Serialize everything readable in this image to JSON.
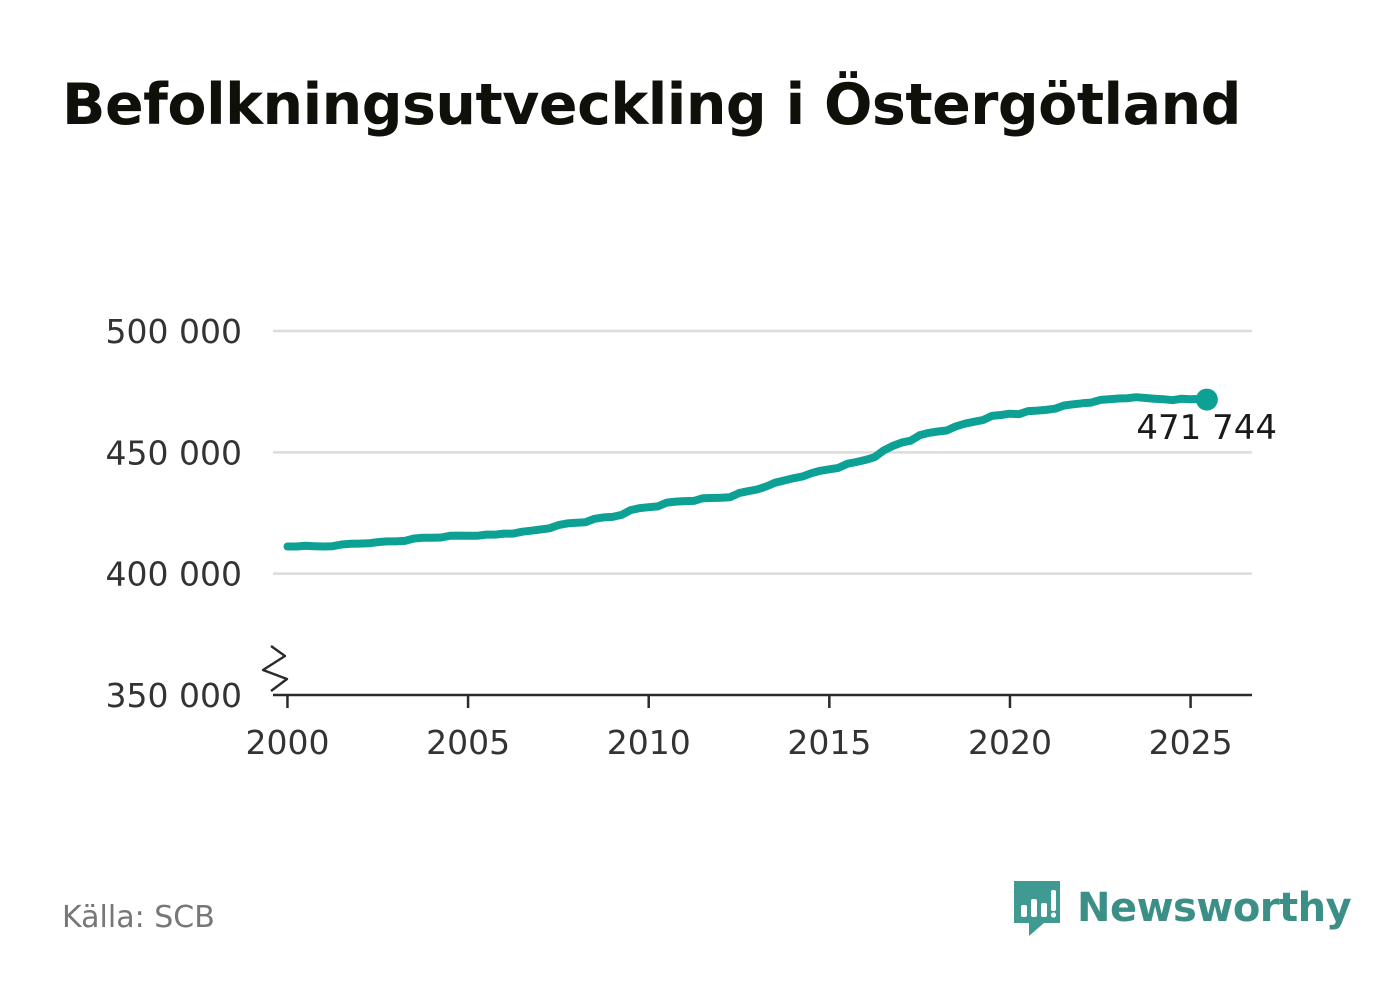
{
  "chart_data": {
    "type": "line",
    "title": "Befolkningsutveckling i Östergötland",
    "xlabel": "",
    "ylabel": "",
    "xlim": [
      1999.6,
      2026.7
    ],
    "ylim": [
      350000,
      500000
    ],
    "y_axis_break": true,
    "grid": true,
    "color": "#0da195",
    "x_ticks": [
      {
        "value": 2000,
        "label": "2000"
      },
      {
        "value": 2005,
        "label": "2005"
      },
      {
        "value": 2010,
        "label": "2010"
      },
      {
        "value": 2015,
        "label": "2015"
      },
      {
        "value": 2020,
        "label": "2020"
      },
      {
        "value": 2025,
        "label": "2025"
      }
    ],
    "y_ticks": [
      {
        "value": 350000,
        "label": "350 000"
      },
      {
        "value": 400000,
        "label": "400 000"
      },
      {
        "value": 450000,
        "label": "450 000"
      },
      {
        "value": 500000,
        "label": "500 000"
      }
    ],
    "series": [
      {
        "x": [
          2000.0,
          2000.25,
          2000.5,
          2000.75,
          2001.0,
          2001.25,
          2001.5,
          2001.75,
          2002.0,
          2002.25,
          2002.5,
          2002.75,
          2003.0,
          2003.25,
          2003.5,
          2003.75,
          2004.0,
          2004.25,
          2004.5,
          2004.75,
          2005.0,
          2005.25,
          2005.5,
          2005.75,
          2006.0,
          2006.25,
          2006.5,
          2006.75,
          2007.0,
          2007.25,
          2007.5,
          2007.75,
          2008.0,
          2008.25,
          2008.5,
          2008.75,
          2009.0,
          2009.25,
          2009.5,
          2009.75,
          2010.0,
          2010.25,
          2010.5,
          2010.75,
          2011.0,
          2011.25,
          2011.5,
          2011.75,
          2012.0,
          2012.25,
          2012.5,
          2012.75,
          2013.0,
          2013.25,
          2013.5,
          2013.75,
          2014.0,
          2014.25,
          2014.5,
          2014.75,
          2015.0,
          2015.25,
          2015.5,
          2015.75,
          2016.0,
          2016.25,
          2016.5,
          2016.75,
          2017.0,
          2017.25,
          2017.5,
          2017.75,
          2018.0,
          2018.25,
          2018.5,
          2018.75,
          2019.0,
          2019.25,
          2019.5,
          2019.75,
          2020.0,
          2020.25,
          2020.5,
          2020.75,
          2021.0,
          2021.25,
          2021.5,
          2021.75,
          2022.0,
          2022.25,
          2022.5,
          2022.75,
          2023.0,
          2023.25,
          2023.5,
          2023.75,
          2024.0,
          2024.25,
          2024.5,
          2024.75,
          2025.0,
          2025.25,
          2025.45
        ],
        "values": [
          411200,
          411200,
          411500,
          411300,
          411200,
          411300,
          412000,
          412300,
          412400,
          412500,
          413000,
          413300,
          413300,
          413500,
          414500,
          414800,
          414800,
          414900,
          415600,
          415700,
          415600,
          415600,
          416100,
          416100,
          416500,
          416500,
          417300,
          417700,
          418200,
          418700,
          420000,
          420700,
          421000,
          421200,
          422600,
          423200,
          423400,
          424200,
          426200,
          427000,
          427400,
          427700,
          429300,
          429700,
          429900,
          430000,
          431100,
          431200,
          431300,
          431500,
          433200,
          434000,
          434700,
          435900,
          437500,
          438400,
          439300,
          440000,
          441400,
          442400,
          443000,
          443600,
          445300,
          446000,
          446900,
          448000,
          450700,
          452600,
          454000,
          454800,
          457000,
          458000,
          458600,
          459000,
          460700,
          461800,
          462600,
          463300,
          465000,
          465400,
          465900,
          465700,
          467000,
          467200,
          467500,
          468000,
          469300,
          469800,
          470200,
          470500,
          471600,
          471900,
          472200,
          472300,
          472700,
          472400,
          472100,
          471900,
          471500,
          472100,
          471900,
          472000,
          471744
        ]
      }
    ],
    "end_label": "471 744"
  },
  "footer": {
    "source": "Källa: SCB",
    "brand": "Newsworthy"
  }
}
